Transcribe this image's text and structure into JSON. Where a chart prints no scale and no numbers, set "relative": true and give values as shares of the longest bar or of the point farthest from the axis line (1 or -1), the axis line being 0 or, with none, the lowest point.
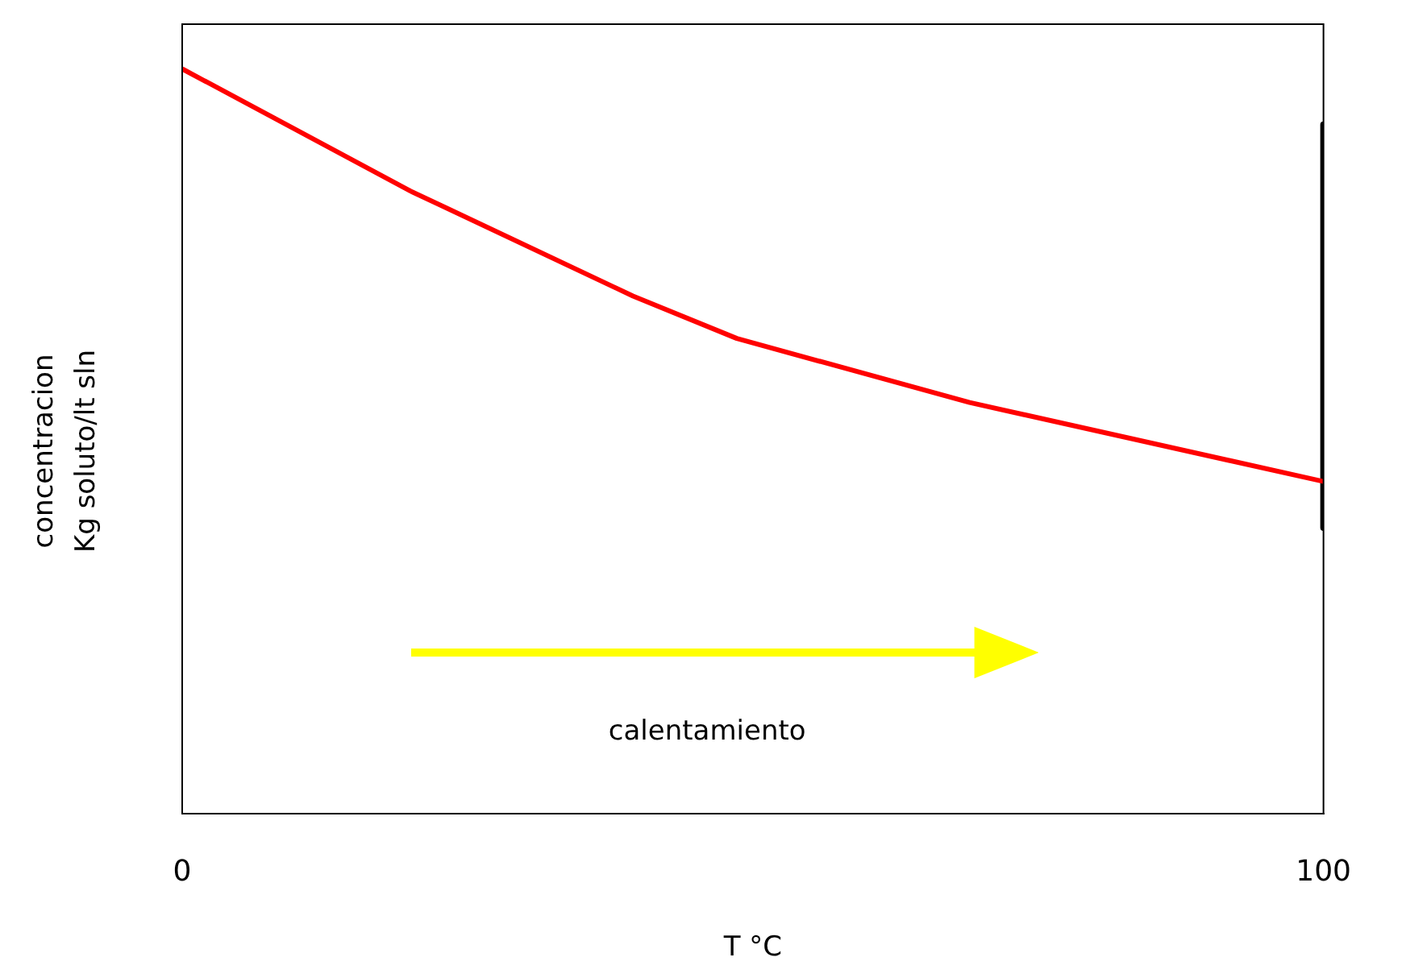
{
  "chart_data": {
    "type": "line",
    "relative": true,
    "ylabel": "concentracion\nKg soluto/lt sln",
    "xlabel": "T °C",
    "xlim": [
      0,
      100
    ],
    "xticks": [
      0,
      100
    ],
    "grid": false,
    "legend": false,
    "marker": "none",
    "line_style": "solid",
    "annotations": [
      "calentamiento"
    ],
    "series": [
      {
        "color": "#ff0000",
        "x": [
          0,
          20,
          39.5,
          48.6,
          69,
          100
        ],
        "values": [
          1,
          0.836,
          0.695,
          0.638,
          0.552,
          0.446
        ]
      },
      {
        "color": "#000000",
        "x": [
          100,
          100
        ],
        "values": [
          0.925,
          0.384
        ]
      }
    ]
  }
}
